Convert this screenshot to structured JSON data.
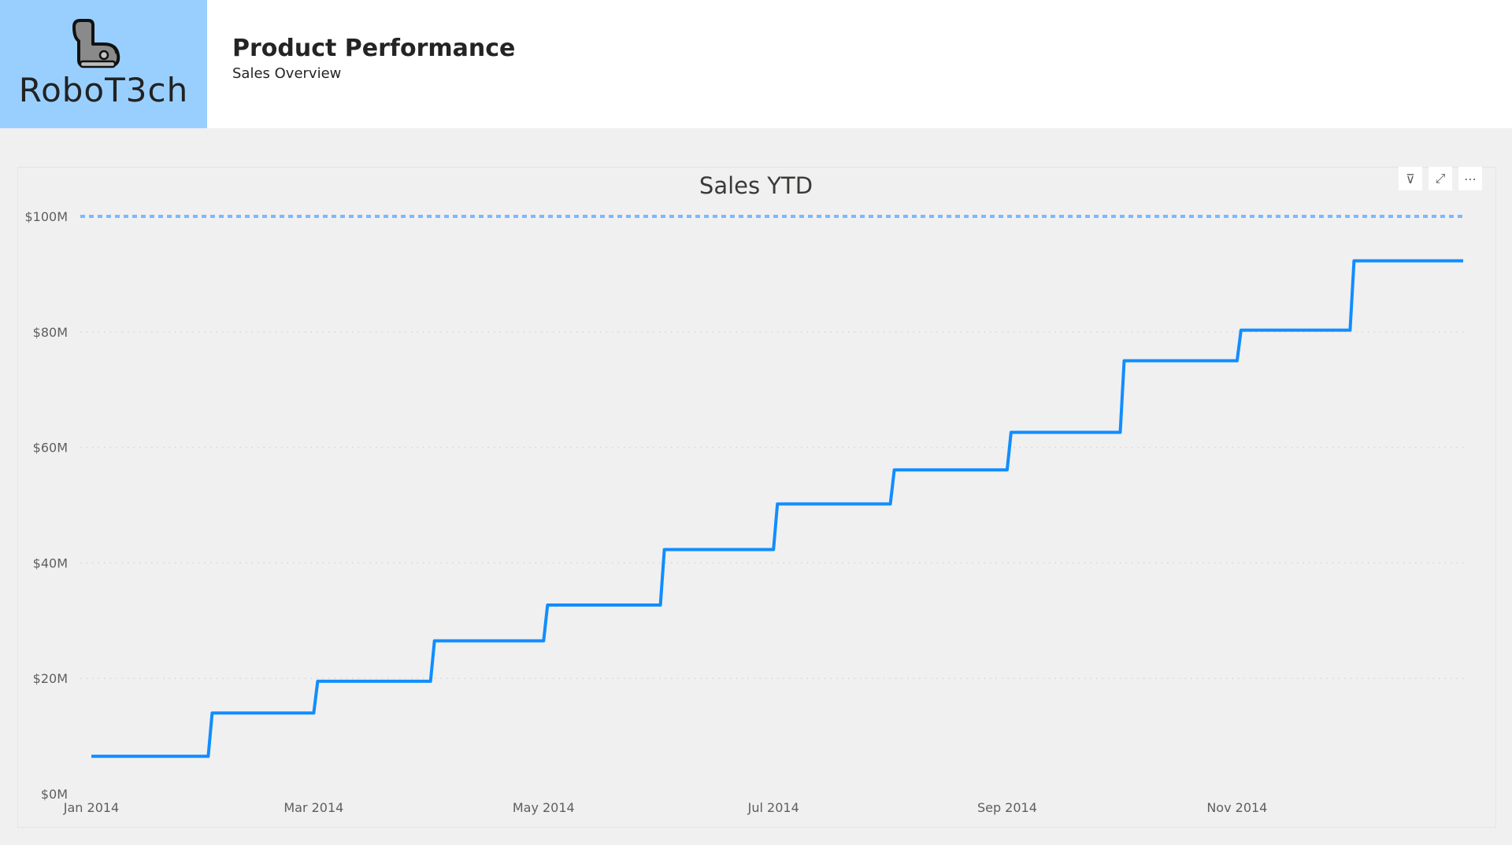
{
  "header": {
    "logo_text": "RoboT3ch",
    "title": "Product Performance",
    "subtitle": "Sales Overview"
  },
  "colors": {
    "logo_bg": "#99cfff",
    "line": "#118dff",
    "reference_line": "#7cb8ff",
    "grid": "#d6d6d6"
  },
  "visual_tools": [
    {
      "name": "filter-icon",
      "glyph": "⊽"
    },
    {
      "name": "focus-mode-icon",
      "glyph": "⤢"
    },
    {
      "name": "more-options-icon",
      "glyph": "⋯"
    }
  ],
  "chart_data": {
    "type": "line",
    "title": "Sales YTD",
    "line_shape": "step",
    "grid": "horizontal dotted",
    "x_start": "Jan 2014",
    "x_end": "Dec 31 2014",
    "x_ticks": [
      "Jan 2014",
      "Mar 2014",
      "May 2014",
      "Jul 2014",
      "Sep 2014",
      "Nov 2014"
    ],
    "y_ticks": [
      "$0M",
      "$20M",
      "$40M",
      "$60M",
      "$80M",
      "$100M"
    ],
    "ylim": [
      0,
      100
    ],
    "yunit": "$M",
    "reference_line": 100,
    "series": [
      {
        "x": [
          "Jan 2014",
          "Feb 2014",
          "Mar 2014",
          "Apr 2014",
          "May 2014",
          "Jun 2014",
          "Jul 2014",
          "Aug 2014",
          "Sep 2014",
          "Oct 2014",
          "Nov 2014",
          "Dec 2014"
        ],
        "values": [
          6.5,
          14,
          19.5,
          26.5,
          32.7,
          42.3,
          50.2,
          56.1,
          62.6,
          75,
          80.3,
          92.3
        ]
      }
    ]
  }
}
